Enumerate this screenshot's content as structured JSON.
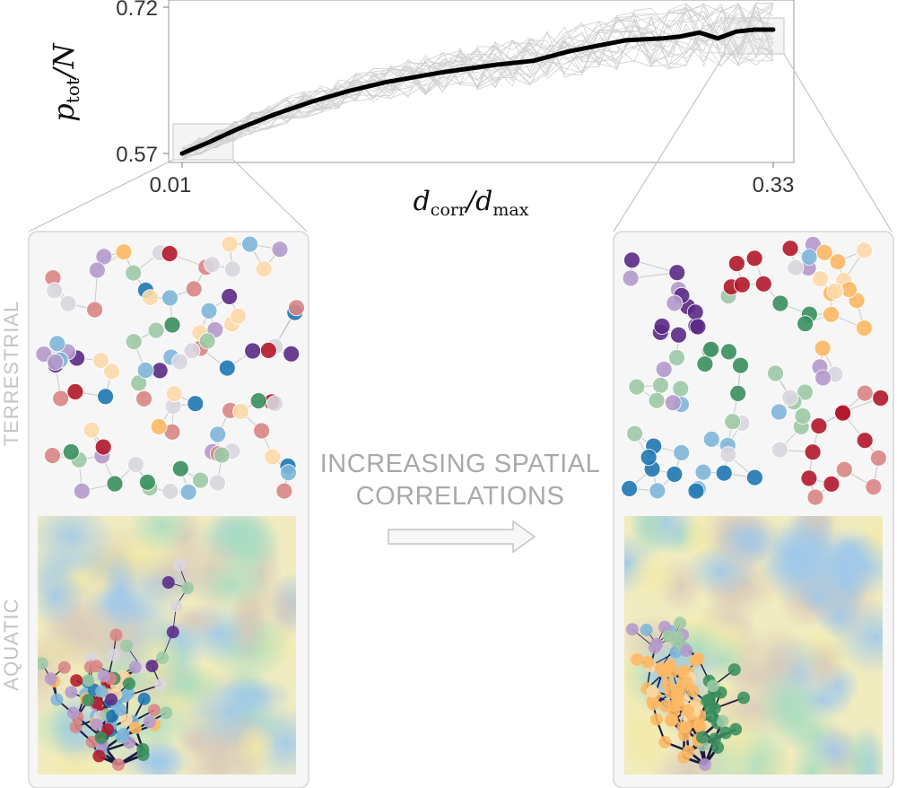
{
  "chart_data": {
    "type": "line",
    "xlabel": "d_corr / d_max",
    "ylabel": "p_tot / N",
    "x_tick_labels": [
      "0.01",
      "0.33"
    ],
    "y_tick_labels": [
      "0.57",
      "0.72"
    ],
    "xlim": [
      0.01,
      0.33
    ],
    "ylim": [
      0.57,
      0.72
    ],
    "mean_series": {
      "x": [
        0.01,
        0.025,
        0.04,
        0.06,
        0.08,
        0.1,
        0.12,
        0.15,
        0.18,
        0.2,
        0.22,
        0.25,
        0.27,
        0.28,
        0.29,
        0.3,
        0.31,
        0.32,
        0.33
      ],
      "y": [
        0.57,
        0.582,
        0.595,
        0.61,
        0.623,
        0.634,
        0.643,
        0.653,
        0.661,
        0.665,
        0.675,
        0.686,
        0.688,
        0.69,
        0.694,
        0.688,
        0.695,
        0.697,
        0.697
      ]
    },
    "grid": false
  },
  "labels": {
    "middle_line1": "INCREASING SPATIAL",
    "middle_line2": "CORRELATIONS",
    "terrestrial": "TERRESTRIAL",
    "aquatic": "AQUATIC"
  },
  "colors": {
    "blue": "#1f78b4",
    "light_blue": "#7fb6d9",
    "green": "#3a8f5f",
    "light_green": "#9cc9a6",
    "red": "#b2182b",
    "light_red": "#d98585",
    "purple": "#5b2a86",
    "light_purple": "#b59acc",
    "orange": "#fdb863",
    "light_orange": "#fdd9a8",
    "mean_line": "#000000",
    "trace_line": "#d0d0d0"
  }
}
